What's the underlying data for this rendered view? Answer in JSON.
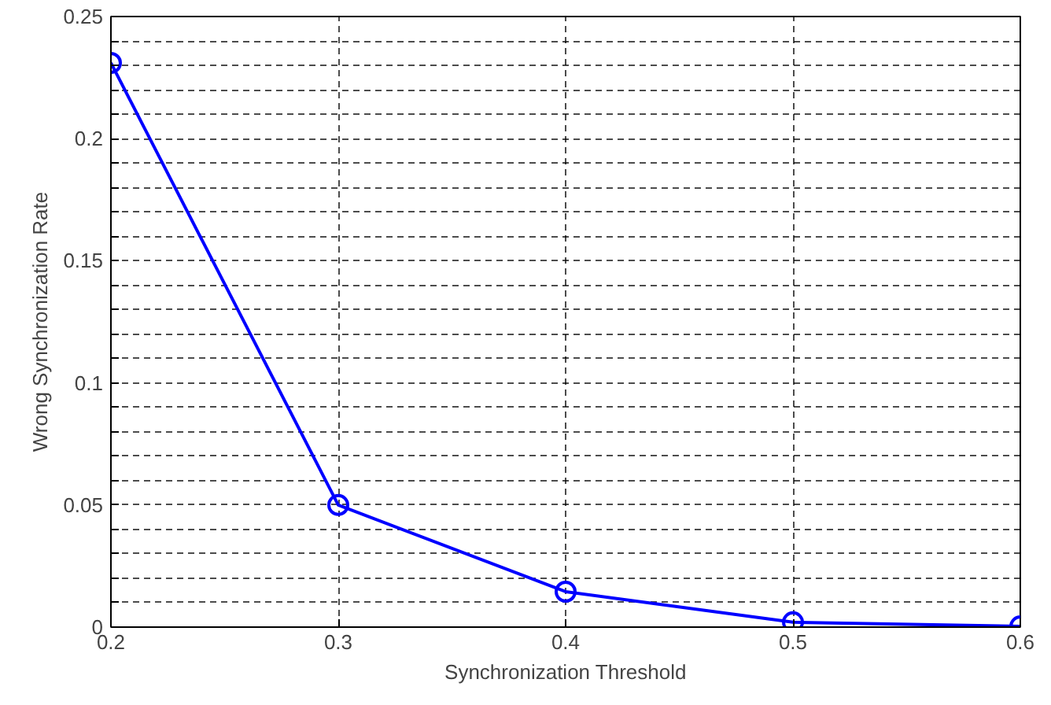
{
  "chart_data": {
    "type": "line",
    "xlabel": "Synchronization Threshold",
    "ylabel": "Wrong Synchronization Rate",
    "x": [
      0.2,
      0.3,
      0.4,
      0.5,
      0.6
    ],
    "series": [
      {
        "color": "#0000ff",
        "values": [
          0.231,
          0.05,
          0.0145,
          0.002,
          0.0003
        ]
      }
    ],
    "xlim": [
      0.2,
      0.6
    ],
    "ylim": [
      0,
      0.25
    ],
    "xticks": [
      0.2,
      0.3,
      0.4,
      0.5,
      0.6
    ],
    "yticks": [
      0,
      {
        "value": 0.01,
        "label": null
      },
      {
        "value": 0.02,
        "label": null
      },
      {
        "value": 0.03,
        "label": null
      },
      {
        "value": 0.04,
        "label": null
      },
      0.05,
      {
        "value": 0.06,
        "label": null
      },
      {
        "value": 0.07,
        "label": null
      },
      {
        "value": 0.08,
        "label": null
      },
      {
        "value": 0.09,
        "label": null
      },
      0.1,
      {
        "value": 0.11,
        "label": null
      },
      {
        "value": 0.12,
        "label": null
      },
      {
        "value": 0.13,
        "label": null
      },
      {
        "value": 0.14,
        "label": null
      },
      0.15,
      {
        "value": 0.16,
        "label": null
      },
      {
        "value": 0.17,
        "label": null
      },
      {
        "value": 0.18,
        "label": null
      },
      {
        "value": 0.19,
        "label": null
      },
      0.2,
      {
        "value": 0.21,
        "label": null
      },
      {
        "value": 0.22,
        "label": null
      },
      {
        "value": 0.23,
        "label": null
      },
      {
        "value": 0.24,
        "label": null
      },
      0.25
    ],
    "grid": true,
    "marker": "circle",
    "line_style": "solid"
  }
}
